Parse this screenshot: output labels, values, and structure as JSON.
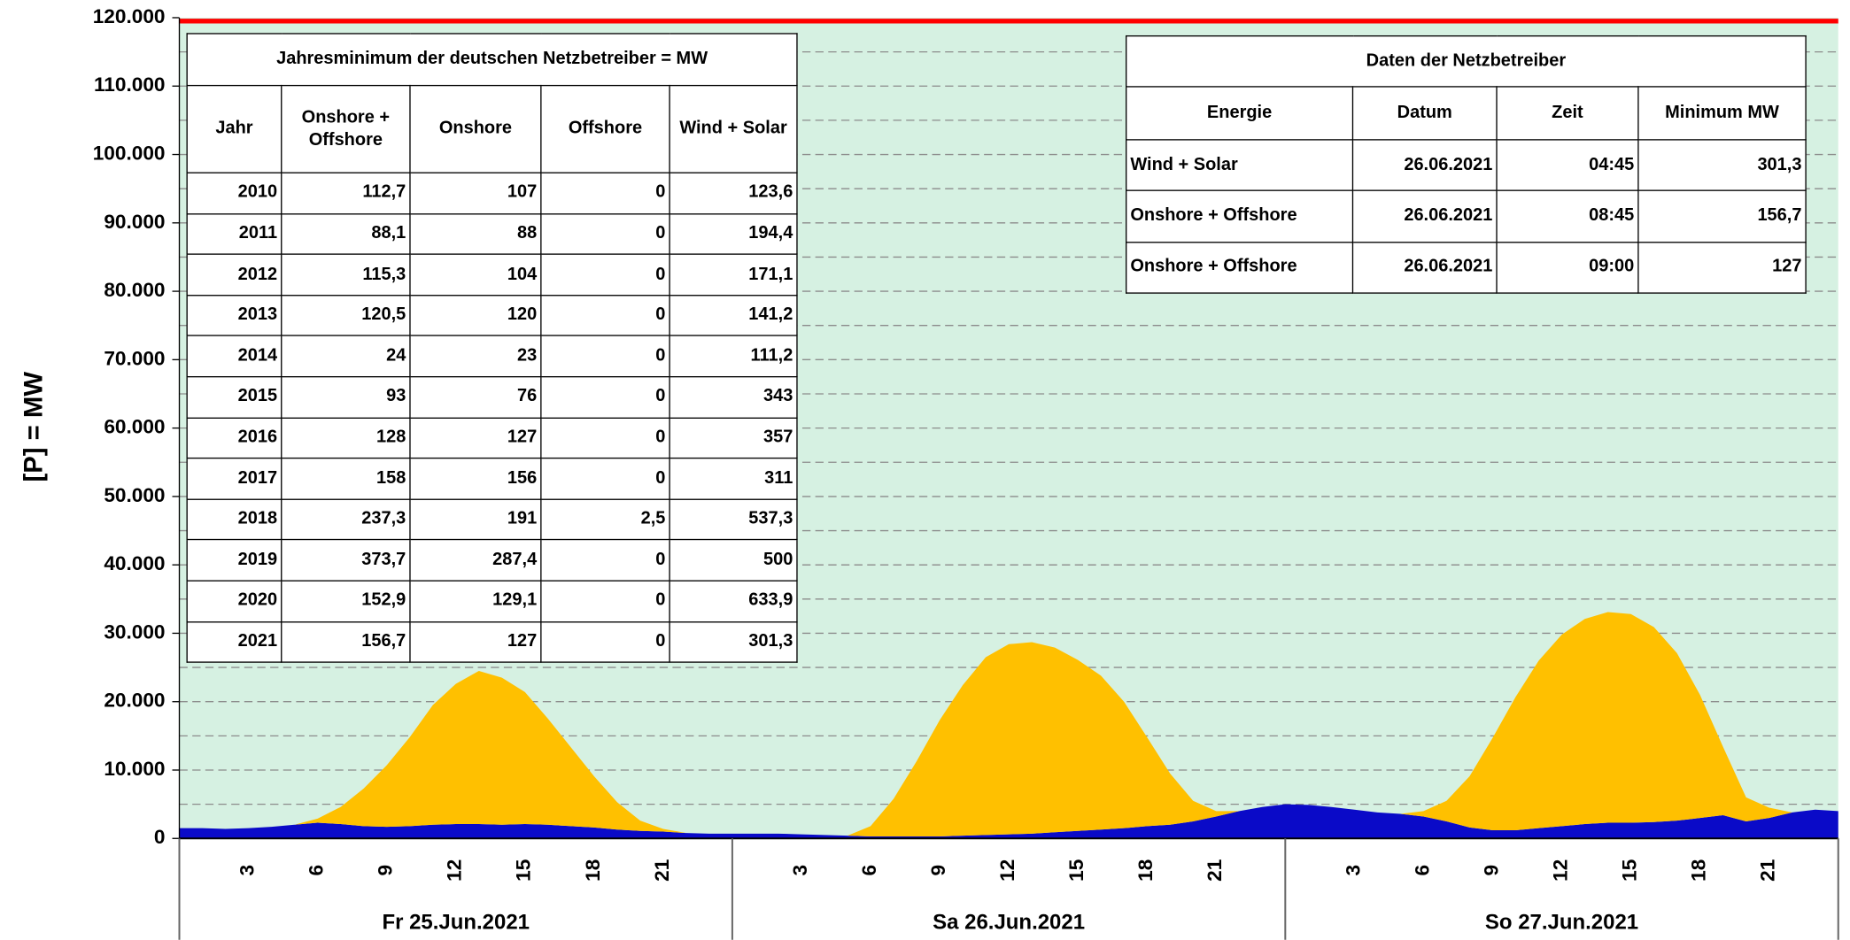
{
  "chart_data": {
    "type": "area",
    "stacked": true,
    "ylabel": "[P] =  MW",
    "ylim": [
      0,
      120000
    ],
    "yticks": [
      {
        "value": 0,
        "label": "0"
      },
      {
        "value": 10000,
        "label": "10.000"
      },
      {
        "value": 20000,
        "label": "20.000"
      },
      {
        "value": 30000,
        "label": "30.000"
      },
      {
        "value": 40000,
        "label": "40.000"
      },
      {
        "value": 50000,
        "label": "50.000"
      },
      {
        "value": 60000,
        "label": "60.000"
      },
      {
        "value": 70000,
        "label": "70.000"
      },
      {
        "value": 80000,
        "label": "80.000"
      },
      {
        "value": 90000,
        "label": "90.000"
      },
      {
        "value": 100000,
        "label": "100.000"
      },
      {
        "value": 110000,
        "label": "110.000"
      },
      {
        "value": 120000,
        "label": "120.000"
      }
    ],
    "minor_yticks": [
      5000,
      15000,
      25000,
      35000,
      45000,
      55000,
      65000,
      75000,
      85000,
      95000,
      105000,
      115000
    ],
    "grid": true,
    "background": "#d6f1e2",
    "xlim": [
      0,
      72
    ],
    "xticks": [
      3,
      6,
      9,
      12,
      15,
      18,
      21,
      {
        "value": 27,
        "label": "3"
      },
      {
        "value": 30,
        "label": "6"
      },
      {
        "value": 33,
        "label": "9"
      },
      {
        "value": 36,
        "label": "12"
      },
      {
        "value": 39,
        "label": "15"
      },
      {
        "value": 42,
        "label": "18"
      },
      {
        "value": 45,
        "label": "21"
      },
      {
        "value": 51,
        "label": "3"
      },
      {
        "value": 54,
        "label": "6"
      },
      {
        "value": 57,
        "label": "9"
      },
      {
        "value": 60,
        "label": "12"
      },
      {
        "value": 63,
        "label": "15"
      },
      {
        "value": 66,
        "label": "18"
      },
      {
        "value": 69,
        "label": "21"
      }
    ],
    "day_edges": [
      0,
      24,
      48,
      72
    ],
    "day_labels": [
      "Fr 25.Jun.2021",
      "Sa 26.Jun.2021",
      "So 27.Jun.2021"
    ],
    "x": [
      0,
      1,
      2,
      3,
      4,
      5,
      6,
      7,
      8,
      9,
      10,
      11,
      12,
      13,
      14,
      15,
      16,
      17,
      18,
      19,
      20,
      21,
      22,
      23,
      24,
      25,
      26,
      27,
      28,
      29,
      30,
      31,
      32,
      33,
      34,
      35,
      36,
      37,
      38,
      39,
      40,
      41,
      42,
      43,
      44,
      45,
      46,
      47,
      48,
      49,
      50,
      51,
      52,
      53,
      54,
      55,
      56,
      57,
      58,
      59,
      60,
      61,
      62,
      63,
      64,
      65,
      66,
      67,
      68,
      69,
      70,
      71,
      72
    ],
    "series": [
      {
        "color": "#0a0ac8",
        "kind": "area",
        "values": [
          1500,
          1500,
          1400,
          1500,
          1700,
          2000,
          2300,
          2100,
          1800,
          1700,
          1800,
          2000,
          2100,
          2100,
          2000,
          2100,
          2000,
          1800,
          1600,
          1300,
          1100,
          1000,
          800,
          700,
          700,
          700,
          700,
          600,
          500,
          400,
          300,
          300,
          300,
          300,
          400,
          500,
          600,
          700,
          900,
          1100,
          1300,
          1500,
          1800,
          2000,
          2500,
          3200,
          4000,
          4600,
          5000,
          4900,
          4600,
          4200,
          3800,
          3600,
          3200,
          2500,
          1600,
          1200,
          1200,
          1500,
          1800,
          2100,
          2300,
          2300,
          2400,
          2600,
          3000,
          3400,
          2500,
          3000,
          3800,
          4200,
          4000
        ]
      },
      {
        "color": "#ffc000",
        "kind": "area",
        "values": [
          0,
          0,
          0,
          0,
          0,
          0,
          600,
          2500,
          5500,
          9000,
          13000,
          17500,
          20500,
          22400,
          21500,
          19300,
          15500,
          11500,
          7500,
          4000,
          1500,
          400,
          0,
          0,
          0,
          0,
          0,
          0,
          0,
          0,
          1500,
          5500,
          11000,
          17000,
          22000,
          26000,
          27800,
          28000,
          27000,
          25000,
          22500,
          18500,
          13000,
          7500,
          3000,
          800,
          0,
          0,
          0,
          0,
          0,
          0,
          0,
          0,
          800,
          3000,
          7500,
          13500,
          19500,
          24500,
          28000,
          30000,
          30800,
          30500,
          28500,
          24500,
          18000,
          10000,
          3500,
          1500,
          0,
          0,
          0
        ]
      },
      {
        "color": "#ff0000",
        "kind": "line",
        "values": [
          119500,
          119500,
          119500,
          119500,
          119500,
          119500,
          119500,
          119500,
          119500,
          119500,
          119500,
          119500,
          119500,
          119500,
          119500,
          119500,
          119500,
          119500,
          119500,
          119500,
          119500,
          119500,
          119500,
          119500,
          119500,
          119500,
          119500,
          119500,
          119500,
          119500,
          119500,
          119500,
          119500,
          119500,
          119500,
          119500,
          119500,
          119500,
          119500,
          119500,
          119500,
          119500,
          119500,
          119500,
          119500,
          119500,
          119500,
          119500,
          119500,
          119500,
          119500,
          119500,
          119500,
          119500,
          119500,
          119500,
          119500,
          119500,
          119500,
          119500,
          119500,
          119500,
          119500,
          119500,
          119500,
          119500,
          119500,
          119500,
          119500,
          119500,
          119500,
          119500,
          119500
        ]
      }
    ]
  },
  "tables": [
    {
      "title": "Jahresminimum der deutschen Netzbetreiber = MW",
      "header": [
        "Jahr",
        "Onshore + Offshore",
        "Onshore",
        "Offshore",
        "Wind + Solar"
      ],
      "rows": [
        [
          "2010",
          "112,7",
          "107",
          "0",
          "123,6"
        ],
        [
          "2011",
          "88,1",
          "88",
          "0",
          "194,4"
        ],
        [
          "2012",
          "115,3",
          "104",
          "0",
          "171,1"
        ],
        [
          "2013",
          "120,5",
          "120",
          "0",
          "141,2"
        ],
        [
          "2014",
          "24",
          "23",
          "0",
          "111,2"
        ],
        [
          "2015",
          "93",
          "76",
          "0",
          "343"
        ],
        [
          "2016",
          "128",
          "127",
          "0",
          "357"
        ],
        [
          "2017",
          "158",
          "156",
          "0",
          "311"
        ],
        [
          "2018",
          "237,3",
          "191",
          "2,5",
          "537,3"
        ],
        [
          "2019",
          "373,7",
          "287,4",
          "0",
          "500"
        ],
        [
          "2020",
          "152,9",
          "129,1",
          "0",
          "633,9"
        ],
        [
          "2021",
          "156,7",
          "127",
          "0",
          "301,3"
        ]
      ]
    },
    {
      "title": "Daten der Netzbetreiber",
      "header": [
        "Energie",
        "Datum",
        "Zeit",
        "Minimum MW"
      ],
      "rows": [
        [
          "Wind + Solar",
          "26.06.2021",
          "04:45",
          "301,3"
        ],
        [
          "Onshore + Offshore",
          "26.06.2021",
          "08:45",
          "156,7"
        ],
        [
          "Onshore + Offshore",
          "26.06.2021",
          "09:00",
          "127"
        ]
      ]
    }
  ]
}
